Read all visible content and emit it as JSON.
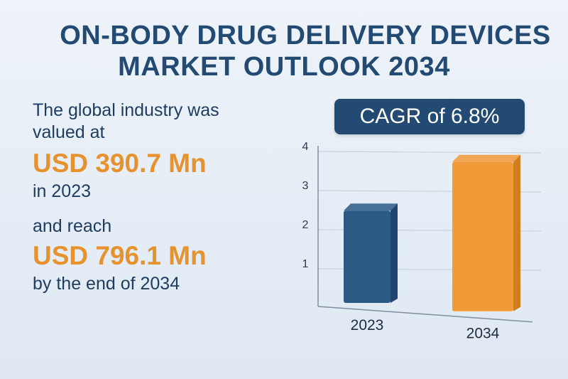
{
  "header": {
    "title_line1": "ON-BODY DRUG DELIVERY DEVICES",
    "title_line2": "MARKET OUTLOOK 2034"
  },
  "summary": {
    "line1": "The global industry was",
    "line2": "valued at",
    "value_2023": "USD 390.7 Mn",
    "line3": "in 2023",
    "line4": "and reach",
    "value_2034": "USD 796.1 Mn",
    "line5": "by the end of 2034"
  },
  "badge": {
    "label": "CAGR of 6.8%"
  },
  "chart_data": {
    "type": "bar",
    "categories": [
      "2023",
      "2034"
    ],
    "values": [
      2.5,
      3.8
    ],
    "yticks": [
      "1",
      "2",
      "3",
      "4"
    ],
    "ylim": [
      0,
      4
    ],
    "grid": true,
    "colors": {
      "2023": "#2b5a87",
      "2034": "#f19a38",
      "bar_2023_dark": "#1f4670",
      "bar_2034_dark": "#d27c20",
      "grid": "#c9d3de",
      "axis": "#7f8ea0"
    }
  }
}
